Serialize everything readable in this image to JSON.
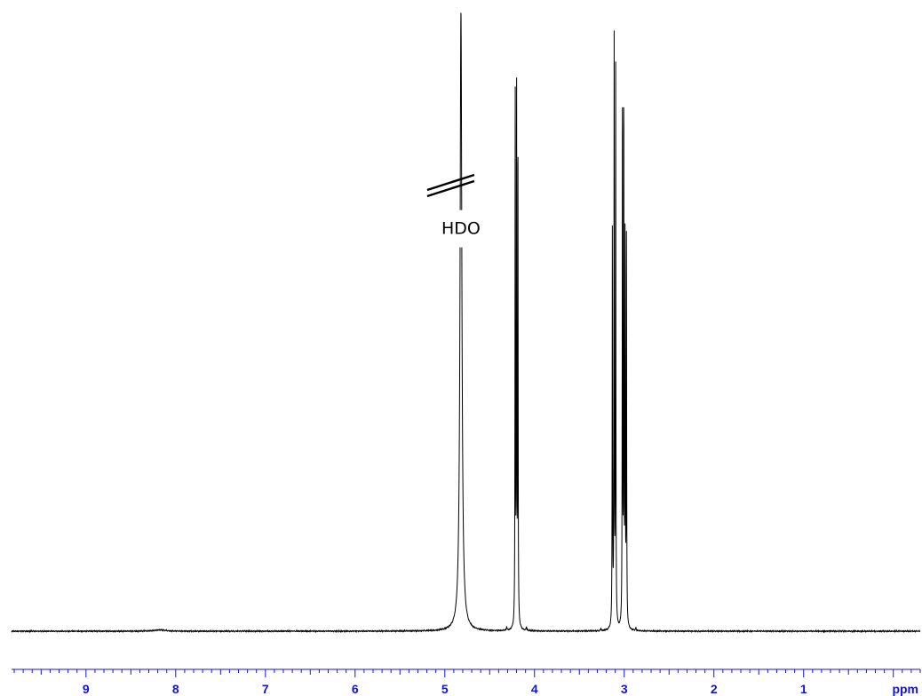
{
  "chart_data": {
    "type": "line",
    "x_unit_label": "ppm",
    "xlim": [
      9.83,
      -0.3
    ],
    "ylim": [
      0,
      1.0
    ],
    "x_reversed": true,
    "grid": false,
    "legend": "none",
    "colors": {
      "trace": "#000000",
      "axis": "#1414d2",
      "annotation": "#000000"
    },
    "x_ticks": [
      {
        "value": 9,
        "label": "9"
      },
      {
        "value": 8,
        "label": "8"
      },
      {
        "value": 7,
        "label": "7"
      },
      {
        "value": 6,
        "label": "6"
      },
      {
        "value": 5,
        "label": "5"
      },
      {
        "value": 4,
        "label": "4"
      },
      {
        "value": 3,
        "label": "3"
      },
      {
        "value": 2,
        "label": "2"
      },
      {
        "value": 1,
        "label": "1"
      }
    ],
    "minor_tick_step": 0.1,
    "peaks": [
      {
        "ppm": 4.82,
        "height": 1.0,
        "width": 0.012,
        "truncated": true
      },
      {
        "ppm": 4.215,
        "height": 0.868,
        "width": 0.0025
      },
      {
        "ppm": 4.2,
        "height": 0.893,
        "width": 0.0025
      },
      {
        "ppm": 4.185,
        "height": 0.81,
        "width": 0.0025
      },
      {
        "ppm": 4.31,
        "height": 0.006,
        "width": 0.004
      },
      {
        "ppm": 4.09,
        "height": 0.006,
        "width": 0.004
      },
      {
        "ppm": 3.132,
        "height": 0.65,
        "width": 0.0025
      },
      {
        "ppm": 3.112,
        "height": 0.94,
        "width": 0.0025
      },
      {
        "ppm": 3.095,
        "height": 0.9,
        "width": 0.0025
      },
      {
        "ppm": 3.02,
        "height": 0.88,
        "width": 0.0025
      },
      {
        "ppm": 3.005,
        "height": 0.87,
        "width": 0.0025
      },
      {
        "ppm": 2.99,
        "height": 0.64,
        "width": 0.0025
      },
      {
        "ppm": 2.975,
        "height": 0.63,
        "width": 0.0025
      },
      {
        "ppm": 3.26,
        "height": 0.004,
        "width": 0.004
      },
      {
        "ppm": 2.87,
        "height": 0.004,
        "width": 0.004
      },
      {
        "ppm": 8.18,
        "height": 0.002,
        "width": 0.08
      }
    ],
    "annotations": [
      {
        "text": "HDO",
        "ppm": 4.82,
        "height": 0.64
      }
    ]
  }
}
